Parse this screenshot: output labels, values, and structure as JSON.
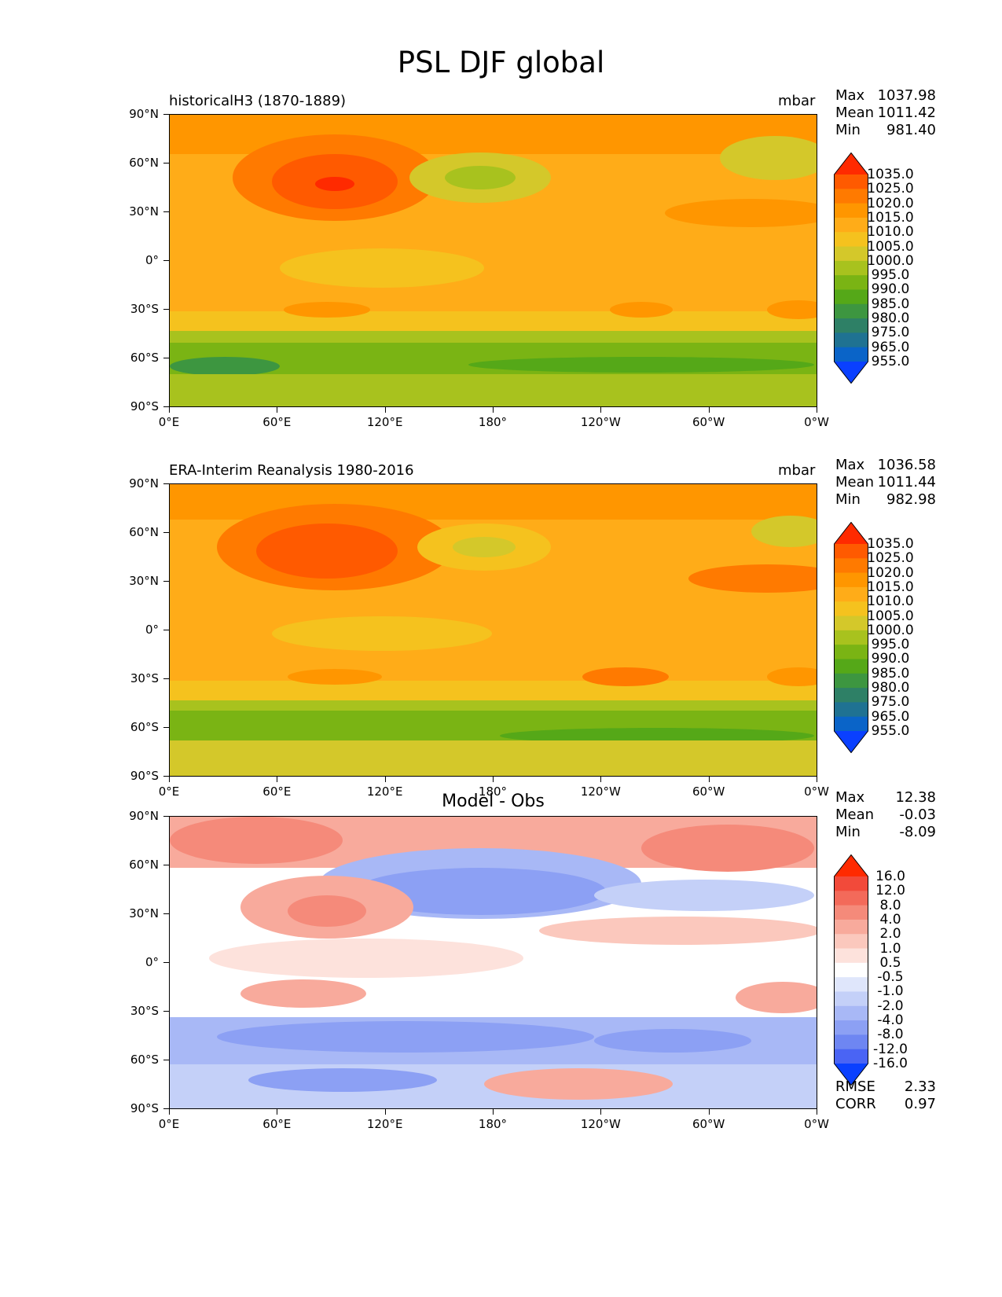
{
  "figure_title": "PSL DJF global",
  "x_ticks": [
    "0°E",
    "60°E",
    "120°E",
    "180°",
    "120°W",
    "60°W",
    "0°W"
  ],
  "y_ticks": [
    "90°N",
    "60°N",
    "30°N",
    "0°",
    "30°S",
    "60°S",
    "90°S"
  ],
  "panels": [
    {
      "title": "historicalH3 (1870-1889)",
      "units": "mbar",
      "stats": {
        "max_label": "Max",
        "max": "1037.98",
        "mean_label": "Mean",
        "mean": "1011.42",
        "min_label": "Min",
        "min": "981.40"
      },
      "colorbar": {
        "labels": [
          "1035.0",
          "1025.0",
          "1020.0",
          "1015.0",
          "1010.0",
          "1005.0",
          "1000.0",
          "995.0",
          "990.0",
          "985.0",
          "980.0",
          "975.0",
          "965.0",
          "955.0"
        ],
        "colors": [
          "#ff2a00",
          "#ff5a00",
          "#ff7a00",
          "#ff9600",
          "#ffac18",
          "#f5c21e",
          "#d4c82a",
          "#a8c21e",
          "#7ab414",
          "#55a818",
          "#3d9640",
          "#2e8066",
          "#1f7292",
          "#0a64c8",
          "#0a40ff"
        ]
      }
    },
    {
      "title": "ERA-Interim Reanalysis 1980-2016",
      "units": "mbar",
      "stats": {
        "max_label": "Max",
        "max": "1036.58",
        "mean_label": "Mean",
        "mean": "1011.44",
        "min_label": "Min",
        "min": "982.98"
      },
      "colorbar": {
        "labels": [
          "1035.0",
          "1025.0",
          "1020.0",
          "1015.0",
          "1010.0",
          "1005.0",
          "1000.0",
          "995.0",
          "990.0",
          "985.0",
          "980.0",
          "975.0",
          "965.0",
          "955.0"
        ],
        "colors": [
          "#ff2a00",
          "#ff5a00",
          "#ff7a00",
          "#ff9600",
          "#ffac18",
          "#f5c21e",
          "#d4c82a",
          "#a8c21e",
          "#7ab414",
          "#55a818",
          "#3d9640",
          "#2e8066",
          "#1f7292",
          "#0a64c8",
          "#0a40ff"
        ]
      }
    },
    {
      "title": "Model - Obs",
      "units": "",
      "stats": {
        "max_label": "Max",
        "max": "12.38",
        "mean_label": "Mean",
        "mean": "-0.03",
        "min_label": "Min",
        "min": "-8.09"
      },
      "colorbar": {
        "labels": [
          "16.0",
          "12.0",
          "8.0",
          "4.0",
          "2.0",
          "1.0",
          "0.5",
          "-0.5",
          "-1.0",
          "-2.0",
          "-4.0",
          "-8.0",
          "-12.0",
          "-16.0"
        ],
        "colors": [
          "#ff2a00",
          "#f24a3a",
          "#f36a5a",
          "#f58a7a",
          "#f8aa9c",
          "#fbc8bd",
          "#fde2dc",
          "#ffffff",
          "#dfe6fb",
          "#c4d0f8",
          "#a8b8f6",
          "#8ca0f4",
          "#6e86f2",
          "#4a64f4",
          "#0a40ff"
        ]
      },
      "rmse_label": "RMSE",
      "rmse": "2.33",
      "corr_label": "CORR",
      "corr": "0.97"
    }
  ],
  "chart_data": {
    "type": "heatmap",
    "title": "PSL DJF global",
    "variable": "PSL",
    "season": "DJF",
    "units": "mbar",
    "x_axis": {
      "range": [
        0,
        360
      ],
      "ticks": [
        "0°E",
        "60°E",
        "120°E",
        "180°",
        "120°W",
        "60°W",
        "0°W"
      ]
    },
    "y_axis": {
      "range": [
        -90,
        90
      ],
      "ticks": [
        "90°N",
        "60°N",
        "30°N",
        "0°",
        "30°S",
        "60°S",
        "90°S"
      ]
    },
    "maps": [
      {
        "name": "historicalH3 (1870-1889)",
        "max": 1037.98,
        "mean": 1011.42,
        "min": 981.4
      },
      {
        "name": "ERA-Interim Reanalysis 1980-2016",
        "max": 1036.58,
        "mean": 1011.44,
        "min": 982.98
      },
      {
        "name": "Model - Obs",
        "max": 12.38,
        "mean": -0.03,
        "min": -8.09,
        "rmse": 2.33,
        "corr": 0.97
      }
    ]
  }
}
